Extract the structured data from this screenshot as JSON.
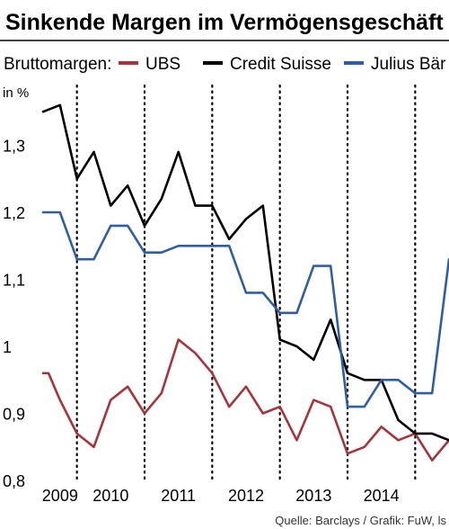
{
  "chart_data": {
    "type": "line",
    "title": "Sinkende Margen im Vermögensgeschäft",
    "legend_title": "Bruttomargen:",
    "legend_position": "top",
    "ylabel": "in %",
    "ylim": [
      0.8,
      1.4
    ],
    "y_ticks": [
      0.8,
      0.9,
      1.0,
      1.1,
      1.2,
      1.3
    ],
    "y_tick_labels": [
      "0,8",
      "0,9",
      "1",
      "1,1",
      "1,2",
      "1,3"
    ],
    "xlim": [
      2009.0,
      2015.0
    ],
    "x_ticks": [
      2009.5,
      2010.5,
      2011.5,
      2012.5,
      2013.5,
      2014.5
    ],
    "x_labels": [
      {
        "text": "2009",
        "x": 2009.25
      },
      {
        "text": "2010",
        "x": 2010.0
      },
      {
        "text": "2011",
        "x": 2011.0
      },
      {
        "text": "2012",
        "x": 2012.0
      },
      {
        "text": "2013",
        "x": 2013.0
      },
      {
        "text": "2014",
        "x": 2014.0
      }
    ],
    "grid": "vertical dotted",
    "source": "Quelle: Barclays / Grafik: FuW, ls",
    "series": [
      {
        "name": "UBS",
        "color": "#a8333a",
        "x": [
          2009.0,
          2009.08,
          2009.25,
          2009.5,
          2009.75,
          2010.0,
          2010.25,
          2010.5,
          2010.75,
          2011.0,
          2011.25,
          2011.5,
          2011.75,
          2012.0,
          2012.25,
          2012.5,
          2012.75,
          2013.0,
          2013.25,
          2013.5,
          2013.75,
          2014.0,
          2014.25,
          2014.5,
          2014.75,
          2015.0
        ],
        "values": [
          0.96,
          0.96,
          0.92,
          0.87,
          0.85,
          0.92,
          0.94,
          0.9,
          0.93,
          1.01,
          0.99,
          0.96,
          0.91,
          0.94,
          0.9,
          0.91,
          0.86,
          0.92,
          0.91,
          0.84,
          0.85,
          0.88,
          0.86,
          0.87,
          0.83,
          0.86
        ]
      },
      {
        "name": "Credit Suisse",
        "color": "#000000",
        "x": [
          2009.0,
          2009.25,
          2009.5,
          2009.75,
          2010.0,
          2010.25,
          2010.5,
          2010.75,
          2011.0,
          2011.25,
          2011.5,
          2011.75,
          2012.0,
          2012.25,
          2012.5,
          2012.75,
          2013.0,
          2013.25,
          2013.5,
          2013.75,
          2014.0,
          2014.25,
          2014.5,
          2014.75,
          2015.0
        ],
        "values": [
          1.35,
          1.36,
          1.25,
          1.29,
          1.21,
          1.24,
          1.18,
          1.22,
          1.29,
          1.21,
          1.21,
          1.16,
          1.19,
          1.21,
          1.01,
          1.0,
          0.98,
          1.04,
          0.96,
          0.95,
          0.95,
          0.89,
          0.87,
          0.87,
          0.86
        ]
      },
      {
        "name": "Julius Bär",
        "color": "#2e5ea8",
        "x": [
          2009.0,
          2009.25,
          2009.5,
          2009.75,
          2010.0,
          2010.25,
          2010.5,
          2010.75,
          2011.0,
          2011.25,
          2011.5,
          2011.75,
          2012.0,
          2012.25,
          2012.5,
          2012.75,
          2013.0,
          2013.25,
          2013.5,
          2013.75,
          2014.0,
          2014.25,
          2014.5,
          2014.75,
          2015.0
        ],
        "values": [
          1.2,
          1.2,
          1.13,
          1.13,
          1.18,
          1.18,
          1.14,
          1.14,
          1.15,
          1.15,
          1.15,
          1.15,
          1.08,
          1.08,
          1.05,
          1.05,
          1.12,
          1.12,
          0.91,
          0.91,
          0.95,
          0.95,
          0.93,
          0.93,
          1.13
        ]
      }
    ]
  }
}
